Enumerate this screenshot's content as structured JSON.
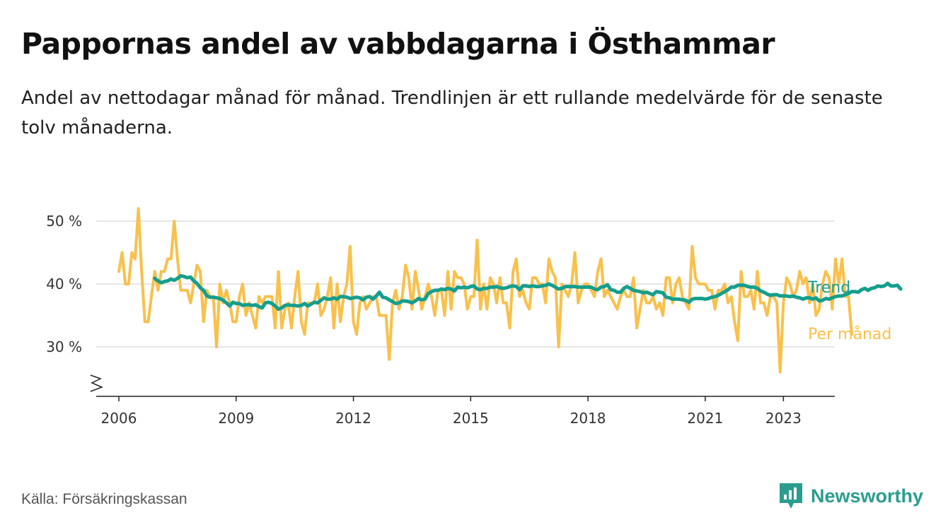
{
  "header": {
    "title": "Pappornas andel av vabbdagarna i Östhammar",
    "subtitle": "Andel av nettodagar månad för månad. Trendlinjen är ett rullande medelvärde för de senaste tolv månaderna."
  },
  "footer": {
    "source": "Källa: Försäkringskassan",
    "brand": "Newsworthy"
  },
  "colors": {
    "monthly": "#f9c04b",
    "trend": "#169e8c",
    "grid": "#dddddd",
    "axis": "#222222"
  },
  "chart_data": {
    "type": "line",
    "title": "Pappornas andel av vabbdagarna i Östhammar",
    "xlabel": "",
    "ylabel": "",
    "ylim": [
      22,
      52
    ],
    "xlim": [
      2005.5,
      2024.5
    ],
    "x_start": 2006.0,
    "x_step": 0.08333,
    "y_ticks": [
      {
        "value": 30,
        "label": "30 %"
      },
      {
        "value": 40,
        "label": "40 %"
      },
      {
        "value": 50,
        "label": "50 %"
      }
    ],
    "x_ticks": [
      {
        "value": 2006,
        "label": "2006"
      },
      {
        "value": 2009,
        "label": "2009"
      },
      {
        "value": 2012,
        "label": "2012"
      },
      {
        "value": 2015,
        "label": "2015"
      },
      {
        "value": 2018,
        "label": "2018"
      },
      {
        "value": 2021,
        "label": "2021"
      },
      {
        "value": 2023,
        "label": "2023"
      }
    ],
    "axis_break": true,
    "grid": true,
    "series": [
      {
        "name": "Per månad",
        "legend": "Per månad",
        "values": [
          42,
          45,
          40,
          40,
          45,
          44,
          52,
          42,
          34,
          34,
          38,
          42,
          39,
          42,
          42,
          44,
          44,
          50,
          44,
          39,
          39,
          39,
          37,
          40,
          43,
          42,
          34,
          39,
          38,
          38,
          30,
          40,
          37,
          39,
          37,
          34,
          34,
          38,
          40,
          35,
          37,
          35,
          33,
          38,
          37,
          38,
          38,
          38,
          33,
          42,
          33,
          36,
          37,
          33,
          38,
          42,
          34,
          32,
          37,
          37,
          37,
          40,
          35,
          36,
          38,
          41,
          33,
          40,
          34,
          38,
          40,
          46,
          34,
          32,
          37,
          38,
          36,
          37,
          38,
          38,
          35,
          35,
          35,
          28,
          37,
          39,
          36,
          38,
          43,
          41,
          36,
          42,
          39,
          36,
          38,
          40,
          38,
          35,
          39,
          39,
          35,
          42,
          36,
          42,
          41,
          41,
          40,
          36,
          38,
          38,
          47,
          36,
          40,
          36,
          41,
          40,
          37,
          41,
          37,
          37,
          33,
          42,
          44,
          38,
          39,
          37,
          36,
          41,
          41,
          40,
          40,
          37,
          44,
          42,
          41,
          30,
          40,
          39,
          38,
          40,
          45,
          37,
          39,
          40,
          40,
          39,
          38,
          42,
          44,
          38,
          39,
          38,
          37,
          36,
          38,
          39,
          38,
          38,
          41,
          33,
          36,
          39,
          37,
          37,
          38,
          36,
          37,
          35,
          41,
          41,
          37,
          40,
          41,
          38,
          37,
          36,
          46,
          41,
          40,
          40,
          40,
          39,
          39,
          36,
          39,
          39,
          40,
          37,
          38,
          34,
          31,
          42,
          38,
          38,
          39,
          36,
          42,
          37,
          37,
          35,
          38,
          38,
          37,
          26,
          37,
          41,
          40,
          38,
          39,
          42,
          40,
          41,
          37,
          40,
          35,
          36,
          40,
          42,
          41,
          36,
          44,
          40,
          44,
          38,
          38,
          32
        ],
        "color": "#f9c04b"
      },
      {
        "name": "Trend",
        "legend": "Trend",
        "start_index": 11,
        "values": [
          40.9,
          40.5,
          40.2,
          40.4,
          40.5,
          40.8,
          40.6,
          40.9,
          41.3,
          41.2,
          41.0,
          41.1,
          40.5,
          40.1,
          39.4,
          39.0,
          38.1,
          37.9,
          37.9,
          37.8,
          37.7,
          37.4,
          37.0,
          36.5,
          37.1,
          36.9,
          36.9,
          36.6,
          36.7,
          36.7,
          36.6,
          36.7,
          36.4,
          36.2,
          37.0,
          37.1,
          36.9,
          36.5,
          36.0,
          36.2,
          36.6,
          36.7,
          36.6,
          36.6,
          36.5,
          36.6,
          36.9,
          36.5,
          36.8,
          37.1,
          37.0,
          37.4,
          37.8,
          37.6,
          37.6,
          37.8,
          37.6,
          38.0,
          38.0,
          37.9,
          37.7,
          37.8,
          37.9,
          37.8,
          37.5,
          37.9,
          38.0,
          37.6,
          38.1,
          38.7,
          37.9,
          37.8,
          37.5,
          37.2,
          36.9,
          37.0,
          37.3,
          37.3,
          37.2,
          37.0,
          37.3,
          37.7,
          37.5,
          37.6,
          38.5,
          38.8,
          39.0,
          39.0,
          39.2,
          39.1,
          39.3,
          39.2,
          38.9,
          39.5,
          39.4,
          39.5,
          39.4,
          39.6,
          39.7,
          39.2,
          39.1,
          39.3,
          39.3,
          39.5,
          39.5,
          39.6,
          39.4,
          39.3,
          39.4,
          39.6,
          39.7,
          39.6,
          39.1,
          39.7,
          39.7,
          39.6,
          39.7,
          39.6,
          39.6,
          39.7,
          39.8,
          40.0,
          39.8,
          39.5,
          39.2,
          39.3,
          39.6,
          39.6,
          39.6,
          39.6,
          39.5,
          39.5,
          39.5,
          39.5,
          39.5,
          39.2,
          39.1,
          39.5,
          39.6,
          39.9,
          39.1,
          39.0,
          38.7,
          38.7,
          39.3,
          39.6,
          39.3,
          39.0,
          38.9,
          38.8,
          38.6,
          38.7,
          38.5,
          38.3,
          38.8,
          38.7,
          38.6,
          37.9,
          37.8,
          37.6,
          37.6,
          37.6,
          37.5,
          37.4,
          37.1,
          37.6,
          37.7,
          37.7,
          37.7,
          37.6,
          37.7,
          37.9,
          38.0,
          38.2,
          38.5,
          38.8,
          39.1,
          39.5,
          39.5,
          39.8,
          39.8,
          39.8,
          39.6,
          39.5,
          39.5,
          39.3,
          38.9,
          38.7,
          38.4,
          38.2,
          38.3,
          38.3,
          38.1,
          38.1,
          38.1,
          38.0,
          38.1,
          37.9,
          37.8,
          37.6,
          37.8,
          37.8,
          37.6,
          37.8,
          37.3,
          37.4,
          37.7,
          37.6,
          37.8,
          38.0,
          38.1,
          38.1,
          38.3,
          38.5,
          38.8,
          38.8,
          38.7,
          39.1,
          39.3,
          39.0,
          39.3,
          39.4,
          39.7,
          39.6,
          39.7,
          40.1,
          39.7,
          39.7,
          39.8,
          39.2
        ]
      }
    ]
  }
}
